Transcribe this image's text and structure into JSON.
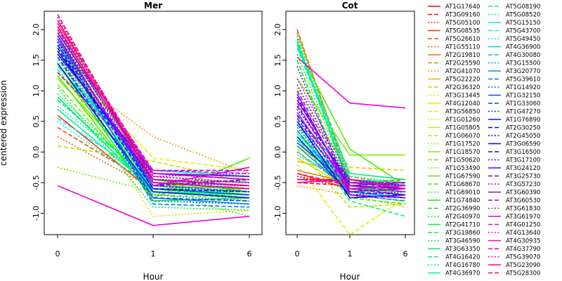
{
  "figure": {
    "ylabel": "centered expression",
    "xlabel": "Hour"
  },
  "chart_data": [
    {
      "type": "line",
      "title": "Mer",
      "x": [
        "0",
        "1",
        "6"
      ],
      "xlabel": "Hour",
      "ylabel": "centered expression",
      "ylim": [
        -1.35,
        2.3
      ],
      "yticks": [
        -1.0,
        -0.5,
        0.0,
        0.5,
        1.0,
        1.5,
        2.0
      ],
      "series": [
        {
          "name": "AT1G17640",
          "values": [
            2.15,
            -0.45,
            -0.55
          ]
        },
        {
          "name": "AT3G09160",
          "values": [
            2.05,
            -0.5,
            -0.6
          ]
        },
        {
          "name": "AT5G05100",
          "values": [
            2.2,
            -0.4,
            -0.5
          ]
        },
        {
          "name": "AT5G08535",
          "values": [
            0.6,
            -0.65,
            -0.7
          ]
        },
        {
          "name": "AT5G26610",
          "values": [
            0.4,
            -0.55,
            -0.6
          ]
        },
        {
          "name": "AT1G55110",
          "values": [
            0.25,
            -0.6,
            -0.55
          ]
        },
        {
          "name": "AT2G19810",
          "values": [
            2.1,
            -0.35,
            -0.45
          ]
        },
        {
          "name": "AT2G25590",
          "values": [
            1.95,
            -0.45,
            -0.5
          ]
        },
        {
          "name": "AT2G41070",
          "values": [
            1.4,
            0.25,
            -0.35
          ]
        },
        {
          "name": "AT5G22220",
          "values": [
            1.85,
            -0.3,
            -0.4
          ]
        },
        {
          "name": "AT2G36320",
          "values": [
            1.7,
            -0.7,
            -0.6
          ]
        },
        {
          "name": "AT3G13445",
          "values": [
            1.45,
            -1.05,
            -0.95
          ]
        },
        {
          "name": "AT4G12040",
          "values": [
            1.75,
            -0.5,
            -0.6
          ]
        },
        {
          "name": "AT3G56850",
          "values": [
            1.55,
            -0.1,
            -0.3
          ]
        },
        {
          "name": "AT1G01260",
          "values": [
            1.3,
            -0.55,
            -0.6
          ]
        },
        {
          "name": "AT1G05805",
          "values": [
            2.0,
            -0.45,
            -0.55
          ]
        },
        {
          "name": "AT1G06070",
          "values": [
            0.1,
            -0.15,
            -0.5
          ]
        },
        {
          "name": "AT1G17520",
          "values": [
            1.6,
            -0.6,
            -0.8
          ]
        },
        {
          "name": "AT1G18570",
          "values": [
            1.2,
            -0.5,
            -0.7
          ]
        },
        {
          "name": "AT1G50620",
          "values": [
            1.1,
            -0.7,
            -0.75
          ]
        },
        {
          "name": "AT1G53490",
          "values": [
            -0.25,
            -0.65,
            -1.05
          ]
        },
        {
          "name": "AT1G67590",
          "values": [
            1.25,
            -0.75,
            -0.1
          ]
        },
        {
          "name": "AT1G68670",
          "values": [
            1.35,
            -0.6,
            -0.75
          ]
        },
        {
          "name": "AT1G69010",
          "values": [
            1.5,
            -0.55,
            -0.7
          ]
        },
        {
          "name": "AT1G74840",
          "values": [
            1.65,
            -0.45,
            -0.65
          ]
        },
        {
          "name": "AT2G36990",
          "values": [
            1.8,
            -0.5,
            -0.6
          ]
        },
        {
          "name": "AT2G40970",
          "values": [
            1.05,
            -0.9,
            -0.95
          ]
        },
        {
          "name": "AT2G41710",
          "values": [
            1.45,
            -0.8,
            -0.75
          ]
        },
        {
          "name": "AT3G19860",
          "values": [
            1.55,
            -0.6,
            -0.7
          ]
        },
        {
          "name": "AT3G46590",
          "values": [
            0.95,
            -0.55,
            -0.6
          ]
        },
        {
          "name": "AT3G63350",
          "values": [
            0.9,
            -0.65,
            -0.7
          ]
        },
        {
          "name": "AT4G16420",
          "values": [
            0.85,
            -0.5,
            -0.55
          ]
        },
        {
          "name": "AT4G16780",
          "values": [
            0.75,
            -0.45,
            -0.5
          ]
        },
        {
          "name": "AT4G36970",
          "values": [
            0.7,
            -0.6,
            -0.65
          ]
        },
        {
          "name": "AT5G08190",
          "values": [
            1.6,
            -0.35,
            -0.45
          ]
        },
        {
          "name": "AT5G08520",
          "values": [
            1.5,
            -0.4,
            -0.5
          ]
        },
        {
          "name": "AT5G15150",
          "values": [
            1.4,
            -0.3,
            -0.4
          ]
        },
        {
          "name": "AT5G43700",
          "values": [
            0.55,
            -0.45,
            -0.55
          ]
        },
        {
          "name": "AT5G49450",
          "values": [
            0.5,
            -0.6,
            -0.7
          ]
        },
        {
          "name": "AT4G36900",
          "values": [
            1.8,
            -0.65,
            -0.75
          ]
        },
        {
          "name": "AT4G30080",
          "values": [
            1.7,
            -0.55,
            -0.65
          ]
        },
        {
          "name": "AT3G15500",
          "values": [
            1.65,
            -0.7,
            -0.8
          ]
        },
        {
          "name": "AT3G20770",
          "values": [
            1.75,
            -0.75,
            -0.85
          ]
        },
        {
          "name": "AT5G39610",
          "values": [
            1.85,
            -0.85,
            -0.9
          ]
        },
        {
          "name": "AT1G14920",
          "values": [
            1.6,
            -0.8,
            -0.85
          ]
        },
        {
          "name": "AT1G32150",
          "values": [
            1.9,
            -0.6,
            -0.7
          ]
        },
        {
          "name": "AT1G33060",
          "values": [
            1.55,
            -0.75,
            -0.8
          ]
        },
        {
          "name": "AT1G47270",
          "values": [
            2.0,
            -0.55,
            -0.65
          ]
        },
        {
          "name": "AT1G76890",
          "values": [
            1.45,
            -0.65,
            -0.75
          ]
        },
        {
          "name": "AT2G30250",
          "values": [
            1.7,
            -0.6,
            -0.65
          ]
        },
        {
          "name": "AT2G45050",
          "values": [
            1.8,
            -0.5,
            -0.55
          ]
        },
        {
          "name": "AT3G06590",
          "values": [
            1.65,
            -0.45,
            -0.55
          ]
        },
        {
          "name": "AT3G16500",
          "values": [
            1.75,
            -0.55,
            -0.45
          ]
        },
        {
          "name": "AT3G17100",
          "values": [
            1.9,
            -0.4,
            -0.5
          ]
        },
        {
          "name": "AT3G24120",
          "values": [
            1.6,
            -0.35,
            -0.4
          ]
        },
        {
          "name": "AT3G25730",
          "values": [
            1.85,
            -0.5,
            -0.6
          ]
        },
        {
          "name": "AT3G57230",
          "values": [
            2.05,
            -0.45,
            -0.5
          ]
        },
        {
          "name": "AT3G60390",
          "values": [
            1.95,
            -0.35,
            -0.45
          ]
        },
        {
          "name": "AT3G60530",
          "values": [
            1.3,
            -0.3,
            -0.3
          ]
        },
        {
          "name": "AT3G61830",
          "values": [
            2.1,
            -0.4,
            -0.35
          ]
        },
        {
          "name": "AT3G61970",
          "values": [
            1.85,
            -0.55,
            -0.25
          ]
        },
        {
          "name": "AT4G01250",
          "values": [
            2.0,
            -0.3,
            -0.35
          ]
        },
        {
          "name": "AT4G13640",
          "values": [
            2.1,
            -0.5,
            -0.55
          ]
        },
        {
          "name": "AT4G30935",
          "values": [
            -0.55,
            -1.2,
            -1.05
          ]
        },
        {
          "name": "AT4G37790",
          "values": [
            2.15,
            -0.35,
            -0.45
          ]
        },
        {
          "name": "AT5G39070",
          "values": [
            2.2,
            -0.4,
            -0.5
          ]
        },
        {
          "name": "AT5G23090",
          "values": [
            2.05,
            -0.45,
            -0.55
          ]
        },
        {
          "name": "AT5G28300",
          "values": [
            2.25,
            -0.5,
            -0.6
          ]
        }
      ]
    },
    {
      "type": "line",
      "title": "Cot",
      "x": [
        "0",
        "1",
        "6"
      ],
      "xlabel": "Hour",
      "ylabel": "",
      "ylim": [
        -1.35,
        2.3
      ],
      "yticks": [
        -1.0,
        -0.5,
        0.0,
        0.5,
        1.0,
        1.5,
        2.0
      ],
      "series": [
        {
          "name": "AT1G17640",
          "values": [
            -0.45,
            -0.45,
            -0.55
          ]
        },
        {
          "name": "AT3G09160",
          "values": [
            -0.5,
            -0.55,
            -0.6
          ]
        },
        {
          "name": "AT5G05100",
          "values": [
            -0.4,
            -0.5,
            -0.5
          ]
        },
        {
          "name": "AT5G08535",
          "values": [
            -0.35,
            -0.6,
            -0.65
          ]
        },
        {
          "name": "AT5G26610",
          "values": [
            2.0,
            -0.5,
            -0.45
          ]
        },
        {
          "name": "AT1G55110",
          "values": [
            1.9,
            -0.45,
            -0.5
          ]
        },
        {
          "name": "AT2G19810",
          "values": [
            -0.3,
            -0.5,
            -0.55
          ]
        },
        {
          "name": "AT2G25590",
          "values": [
            1.95,
            -0.4,
            -0.55
          ]
        },
        {
          "name": "AT2G41070",
          "values": [
            -0.55,
            -0.7,
            -0.9
          ]
        },
        {
          "name": "AT5G22220",
          "values": [
            -0.15,
            -0.35,
            -0.45
          ]
        },
        {
          "name": "AT2G36320",
          "values": [
            0.8,
            -0.25,
            -0.3
          ]
        },
        {
          "name": "AT3G13445",
          "values": [
            0.3,
            -0.6,
            -0.6
          ]
        },
        {
          "name": "AT4G12040",
          "values": [
            0.1,
            -0.5,
            -0.55
          ]
        },
        {
          "name": "AT3G56850",
          "values": [
            -0.2,
            -1.35,
            -0.75
          ]
        },
        {
          "name": "AT1G01260",
          "values": [
            0.45,
            -0.55,
            -0.65
          ]
        },
        {
          "name": "AT1G05805",
          "values": [
            -0.1,
            -0.6,
            -0.7
          ]
        },
        {
          "name": "AT1G06070",
          "values": [
            0.05,
            -0.9,
            -0.85
          ]
        },
        {
          "name": "AT1G17520",
          "values": [
            0.25,
            -0.45,
            -0.6
          ]
        },
        {
          "name": "AT1G18570",
          "values": [
            1.2,
            -0.05,
            -0.05
          ]
        },
        {
          "name": "AT1G50620",
          "values": [
            0.0,
            -0.6,
            -0.65
          ]
        },
        {
          "name": "AT1G53490",
          "values": [
            1.05,
            -0.5,
            -0.55
          ]
        },
        {
          "name": "AT1G67590",
          "values": [
            1.7,
            0.05,
            -0.55
          ]
        },
        {
          "name": "AT1G68670",
          "values": [
            0.2,
            -0.75,
            -0.85
          ]
        },
        {
          "name": "AT1G69010",
          "values": [
            1.6,
            -0.55,
            -0.7
          ]
        },
        {
          "name": "AT1G74840",
          "values": [
            0.35,
            -0.65,
            -0.75
          ]
        },
        {
          "name": "AT2G36990",
          "values": [
            1.5,
            -0.7,
            -0.8
          ]
        },
        {
          "name": "AT2G40970",
          "values": [
            1.75,
            -0.45,
            -0.5
          ]
        },
        {
          "name": "AT2G41710",
          "values": [
            1.8,
            -0.55,
            -0.65
          ]
        },
        {
          "name": "AT3G19860",
          "values": [
            1.85,
            -0.6,
            -0.6
          ]
        },
        {
          "name": "AT3G46590",
          "values": [
            0.15,
            -0.5,
            -0.55
          ]
        },
        {
          "name": "AT3G63350",
          "values": [
            0.6,
            -0.45,
            -0.5
          ]
        },
        {
          "name": "AT4G16420",
          "values": [
            0.45,
            -0.8,
            -1.05
          ]
        },
        {
          "name": "AT4G16780",
          "values": [
            1.9,
            -0.4,
            -0.5
          ]
        },
        {
          "name": "AT4G36970",
          "values": [
            1.75,
            -0.35,
            -0.45
          ]
        },
        {
          "name": "AT5G08190",
          "values": [
            1.7,
            -0.45,
            -0.55
          ]
        },
        {
          "name": "AT5G08520",
          "values": [
            1.8,
            -0.5,
            -0.6
          ]
        },
        {
          "name": "AT5G15150",
          "values": [
            0.3,
            -0.55,
            -0.65
          ]
        },
        {
          "name": "AT5G43700",
          "values": [
            0.25,
            -0.6,
            -0.7
          ]
        },
        {
          "name": "AT5G49450",
          "values": [
            -0.05,
            -0.5,
            -0.6
          ]
        },
        {
          "name": "AT4G36900",
          "values": [
            0.2,
            -0.45,
            -0.55
          ]
        },
        {
          "name": "AT4G30080",
          "values": [
            0.5,
            -0.55,
            -0.6
          ]
        },
        {
          "name": "AT3G15500",
          "values": [
            0.0,
            -0.6,
            -0.7
          ]
        },
        {
          "name": "AT3G20770",
          "values": [
            0.1,
            -0.65,
            -0.75
          ]
        },
        {
          "name": "AT5G39610",
          "values": [
            0.35,
            -0.7,
            -0.8
          ]
        },
        {
          "name": "AT1G14920",
          "values": [
            0.4,
            -0.6,
            -0.65
          ]
        },
        {
          "name": "AT1G32150",
          "values": [
            0.15,
            -0.55,
            -0.6
          ]
        },
        {
          "name": "AT1G33060",
          "values": [
            0.55,
            -0.65,
            -0.7
          ]
        },
        {
          "name": "AT1G47270",
          "values": [
            0.45,
            -0.5,
            -0.55
          ]
        },
        {
          "name": "AT1G76890",
          "values": [
            0.25,
            -0.7,
            -0.75
          ]
        },
        {
          "name": "AT2G30250",
          "values": [
            0.6,
            -0.55,
            -0.5
          ]
        },
        {
          "name": "AT2G45050",
          "values": [
            0.7,
            -0.45,
            -0.55
          ]
        },
        {
          "name": "AT3G06590",
          "values": [
            0.5,
            -0.75,
            -0.7
          ]
        },
        {
          "name": "AT3G16500",
          "values": [
            0.75,
            -0.5,
            -0.6
          ]
        },
        {
          "name": "AT3G17100",
          "values": [
            1.4,
            -0.7,
            -0.65
          ]
        },
        {
          "name": "AT3G24120",
          "values": [
            0.85,
            -0.55,
            -0.6
          ]
        },
        {
          "name": "AT3G25730",
          "values": [
            0.9,
            -0.6,
            -0.7
          ]
        },
        {
          "name": "AT3G57230",
          "values": [
            1.1,
            -0.5,
            -0.55
          ]
        },
        {
          "name": "AT3G60390",
          "values": [
            0.95,
            -0.65,
            -0.6
          ]
        },
        {
          "name": "AT3G60530",
          "values": [
            1.0,
            -0.55,
            -0.5
          ]
        },
        {
          "name": "AT3G61830",
          "values": [
            1.2,
            -0.45,
            -0.55
          ]
        },
        {
          "name": "AT3G61970",
          "values": [
            0.65,
            -0.6,
            -0.55
          ]
        },
        {
          "name": "AT4G01250",
          "values": [
            0.8,
            -0.7,
            -0.75
          ]
        },
        {
          "name": "AT4G13640",
          "values": [
            0.55,
            -0.5,
            -0.6
          ]
        },
        {
          "name": "AT4G30935",
          "values": [
            1.55,
            0.8,
            0.72
          ]
        },
        {
          "name": "AT4G37790",
          "values": [
            -0.45,
            -0.5,
            -0.5
          ]
        },
        {
          "name": "AT5G39070",
          "values": [
            -0.4,
            -0.6,
            -0.55
          ]
        },
        {
          "name": "AT5G23090",
          "values": [
            -0.5,
            -0.45,
            -0.6
          ]
        },
        {
          "name": "AT5G28300",
          "values": [
            -0.35,
            -0.55,
            -0.65
          ]
        }
      ]
    }
  ]
}
